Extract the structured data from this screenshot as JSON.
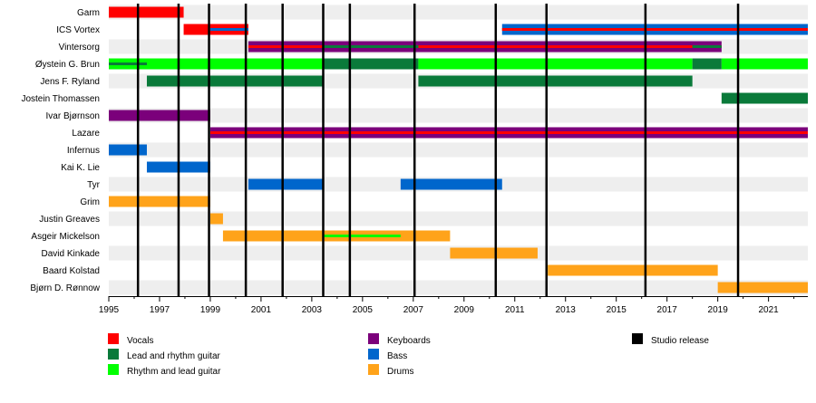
{
  "chart_data": {
    "type": "timeline",
    "title": "",
    "xlabel": "",
    "ylabel": "",
    "xlim": [
      1995,
      2022.55
    ],
    "x_ticks": [
      1995,
      1997,
      1999,
      2001,
      2003,
      2005,
      2007,
      2009,
      2011,
      2013,
      2015,
      2017,
      2019,
      2021
    ],
    "members": [
      "Garm",
      "ICS Vortex",
      "Vintersorg",
      "Øystein G. Brun",
      "Jens F. Ryland",
      "Jostein Thomassen",
      "Ivar Bjørnson",
      "Lazare",
      "Infernus",
      "Kai K. Lie",
      "Tyr",
      "Grim",
      "Justin Greaves",
      "Asgeir Mickelson",
      "David Kinkade",
      "Baard Kolstad",
      "Bjørn D. Rønnow"
    ],
    "roles": [
      {
        "key": "vocals",
        "name": "Vocals",
        "color": "#ff0000"
      },
      {
        "key": "lead_rhythm",
        "name": "Lead and rhythm guitar",
        "color": "#0a7a3a"
      },
      {
        "key": "rhythm_lead",
        "name": "Rhythm and lead guitar",
        "color": "#00ff00"
      },
      {
        "key": "keyboards",
        "name": "Keyboards",
        "color": "#7b007b"
      },
      {
        "key": "bass",
        "name": "Bass",
        "color": "#0066cc"
      },
      {
        "key": "drums",
        "name": "Drums",
        "color": "#ffa31a"
      },
      {
        "key": "studio",
        "name": "Studio release",
        "color": "#000000"
      }
    ],
    "bars": [
      {
        "member": "Garm",
        "role": "vocals",
        "start": 1995.0,
        "end": 1997.95
      },
      {
        "member": "ICS Vortex",
        "role": "vocals",
        "start": 1997.95,
        "end": 2000.5
      },
      {
        "member": "ICS Vortex",
        "role": "bass",
        "start": 1999.0,
        "end": 2000.5,
        "secondary": true
      },
      {
        "member": "ICS Vortex",
        "role": "bass",
        "start": 2010.5,
        "end": 2022.55
      },
      {
        "member": "ICS Vortex",
        "role": "vocals",
        "start": 2010.5,
        "end": 2022.55,
        "secondary": true
      },
      {
        "member": "Vintersorg",
        "role": "keyboards",
        "start": 2000.5,
        "end": 2019.15
      },
      {
        "member": "Vintersorg",
        "role": "vocals",
        "start": 2000.5,
        "end": 2019.15,
        "secondary": true
      },
      {
        "member": "Vintersorg",
        "role": "lead_rhythm",
        "start": 2003.45,
        "end": 2007.2,
        "secondary": true
      },
      {
        "member": "Vintersorg",
        "role": "lead_rhythm",
        "start": 2018.0,
        "end": 2019.15,
        "secondary": true
      },
      {
        "member": "Øystein G. Brun",
        "role": "rhythm_lead",
        "start": 1995.0,
        "end": 2003.45
      },
      {
        "member": "Øystein G. Brun",
        "role": "lead_rhythm",
        "start": 1995.0,
        "end": 1996.5,
        "secondary": true
      },
      {
        "member": "Øystein G. Brun",
        "role": "lead_rhythm",
        "start": 2003.45,
        "end": 2007.2
      },
      {
        "member": "Øystein G. Brun",
        "role": "rhythm_lead",
        "start": 2007.2,
        "end": 2018.0
      },
      {
        "member": "Øystein G. Brun",
        "role": "lead_rhythm",
        "start": 2018.0,
        "end": 2019.15
      },
      {
        "member": "Øystein G. Brun",
        "role": "rhythm_lead",
        "start": 2019.15,
        "end": 2022.55
      },
      {
        "member": "Jens F. Ryland",
        "role": "lead_rhythm",
        "start": 1996.5,
        "end": 2003.45
      },
      {
        "member": "Jens F. Ryland",
        "role": "lead_rhythm",
        "start": 2007.2,
        "end": 2018.0
      },
      {
        "member": "Jostein Thomassen",
        "role": "lead_rhythm",
        "start": 2019.15,
        "end": 2022.55
      },
      {
        "member": "Ivar Bjørnson",
        "role": "keyboards",
        "start": 1995.0,
        "end": 1999.0
      },
      {
        "member": "Lazare",
        "role": "keyboards",
        "start": 1999.0,
        "end": 2022.55
      },
      {
        "member": "Lazare",
        "role": "vocals",
        "start": 1999.0,
        "end": 2022.55,
        "secondary": true
      },
      {
        "member": "Infernus",
        "role": "bass",
        "start": 1995.0,
        "end": 1996.5
      },
      {
        "member": "Kai K. Lie",
        "role": "bass",
        "start": 1996.5,
        "end": 1999.0
      },
      {
        "member": "Tyr",
        "role": "bass",
        "start": 2000.5,
        "end": 2003.45
      },
      {
        "member": "Tyr",
        "role": "bass",
        "start": 2006.5,
        "end": 2010.5
      },
      {
        "member": "Grim",
        "role": "drums",
        "start": 1995.0,
        "end": 1999.0
      },
      {
        "member": "Justin Greaves",
        "role": "drums",
        "start": 1999.0,
        "end": 1999.5
      },
      {
        "member": "Asgeir Mickelson",
        "role": "drums",
        "start": 1999.5,
        "end": 2008.45
      },
      {
        "member": "Asgeir Mickelson",
        "role": "rhythm_lead",
        "start": 2003.45,
        "end": 2006.5,
        "secondary": true
      },
      {
        "member": "David Kinkade",
        "role": "drums",
        "start": 2008.45,
        "end": 2011.9
      },
      {
        "member": "Baard Kolstad",
        "role": "drums",
        "start": 2012.3,
        "end": 2019.0
      },
      {
        "member": "Bjørn D. Rønnow",
        "role": "drums",
        "start": 2019.0,
        "end": 2022.55
      }
    ],
    "studio_releases": [
      1996.15,
      1997.75,
      1998.95,
      2000.4,
      2001.85,
      2003.45,
      2004.5,
      2007.05,
      2010.25,
      2012.25,
      2016.15,
      2019.8
    ],
    "legend_placement": "bottom",
    "grid": true
  }
}
